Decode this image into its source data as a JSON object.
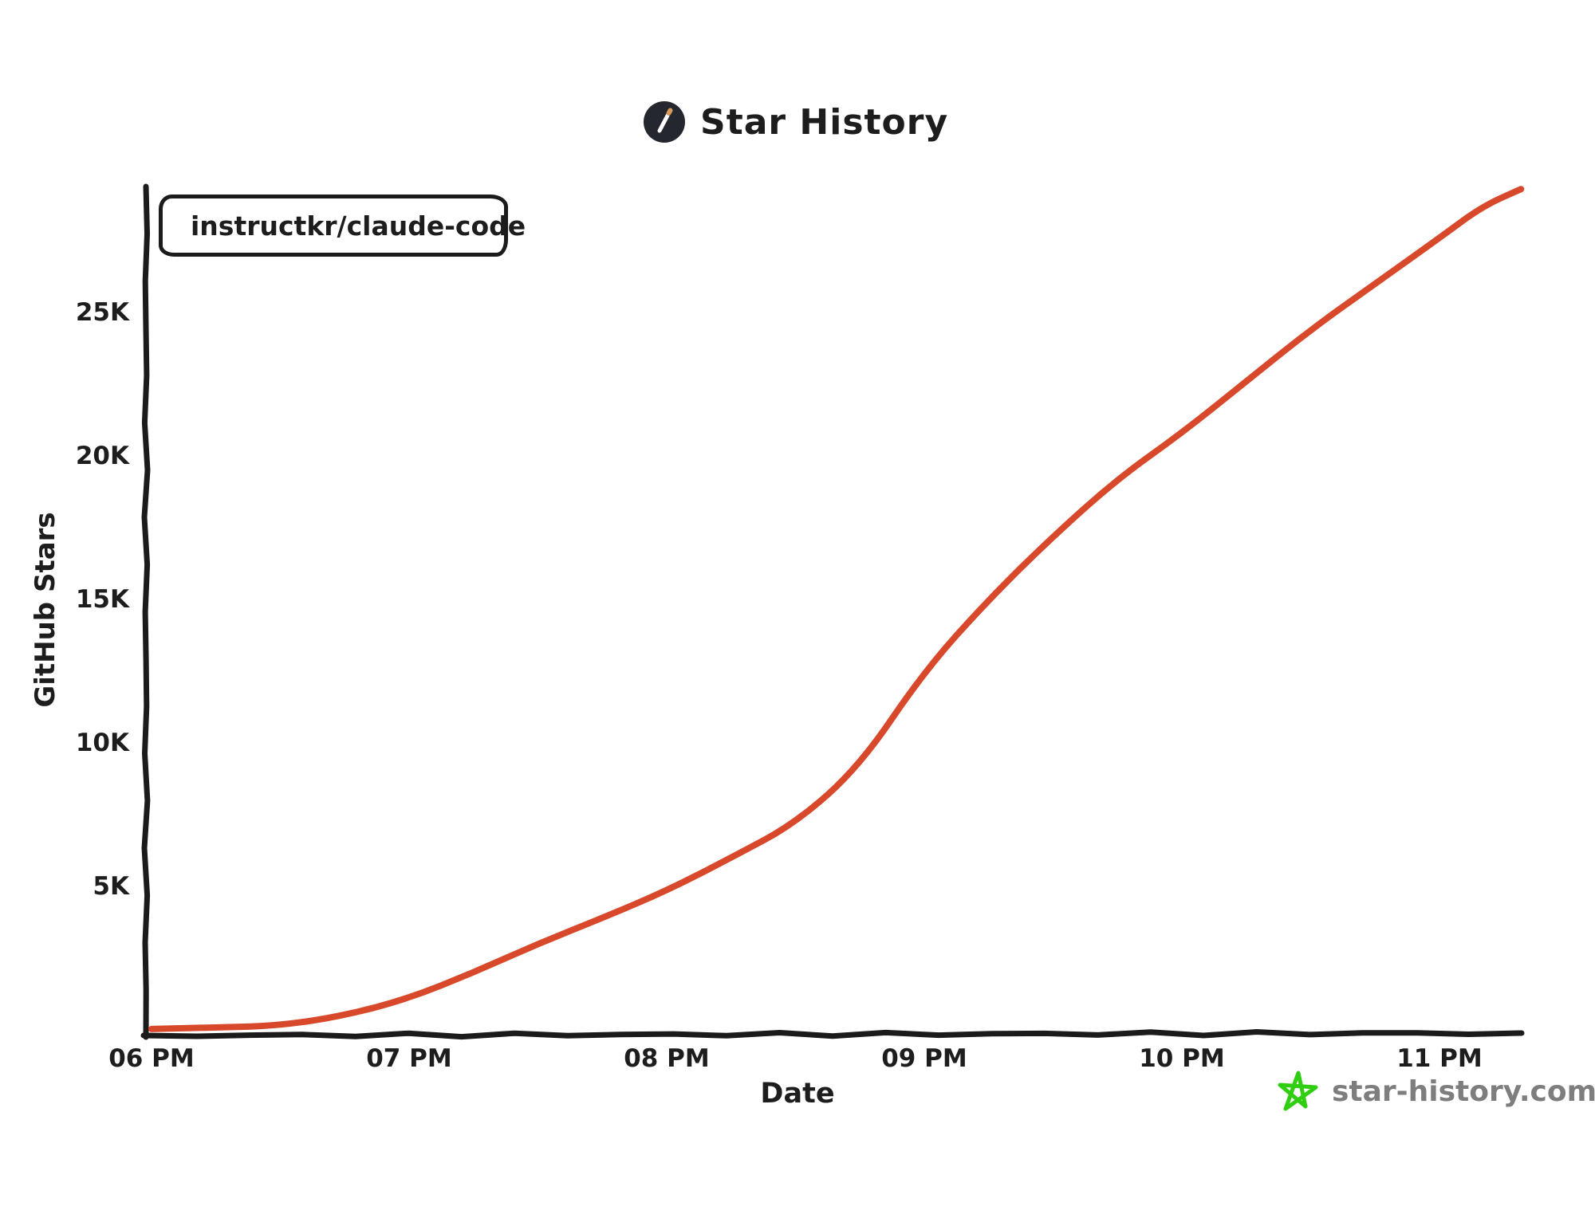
{
  "header": {
    "title": "Star History"
  },
  "legend": {
    "series": "instructkr/claude-code"
  },
  "watermark": {
    "text": "star-history.com"
  },
  "colors": {
    "accent_red": "#D8482B",
    "ink": "#1b1b1b",
    "watermark_gray": "#7E7E7E",
    "star_green": "#2FCE10",
    "logo_bg": "#24272E",
    "logo_slash_white": "#FFFFFF",
    "logo_tip_orange": "#D99A5B"
  },
  "chart_data": {
    "type": "line",
    "title": "Star History",
    "xlabel": "Date",
    "ylabel": "GitHub Stars",
    "x_tick_labels": [
      "06 PM",
      "07 PM",
      "08 PM",
      "09 PM",
      "10 PM",
      "11 PM"
    ],
    "x_tick_hours": [
      18,
      19,
      20,
      21,
      22,
      23
    ],
    "y_tick_labels": [
      "5K",
      "10K",
      "15K",
      "20K",
      "25K"
    ],
    "y_tick_values": [
      5000,
      10000,
      15000,
      20000,
      25000
    ],
    "xlim_hours": [
      18,
      23.33
    ],
    "ylim": [
      0,
      29500
    ],
    "grid": false,
    "legend_position": "top-left",
    "series": [
      {
        "name": "instructkr/claude-code",
        "color": "#D8482B",
        "points": [
          [
            "18:00",
            30
          ],
          [
            "18:15",
            80
          ],
          [
            "18:30",
            150
          ],
          [
            "18:45",
            500
          ],
          [
            "19:00",
            1100
          ],
          [
            "19:15",
            2000
          ],
          [
            "19:30",
            3000
          ],
          [
            "19:45",
            3900
          ],
          [
            "20:00",
            4850
          ],
          [
            "20:15",
            6000
          ],
          [
            "20:30",
            7200
          ],
          [
            "20:45",
            9200
          ],
          [
            "21:00",
            12500
          ],
          [
            "21:15",
            15000
          ],
          [
            "21:30",
            17200
          ],
          [
            "21:45",
            19200
          ],
          [
            "22:00",
            20800
          ],
          [
            "22:15",
            22600
          ],
          [
            "22:30",
            24400
          ],
          [
            "22:45",
            26000
          ],
          [
            "23:00",
            27600
          ],
          [
            "23:10",
            28700
          ],
          [
            "23:19",
            29300
          ]
        ]
      }
    ]
  }
}
